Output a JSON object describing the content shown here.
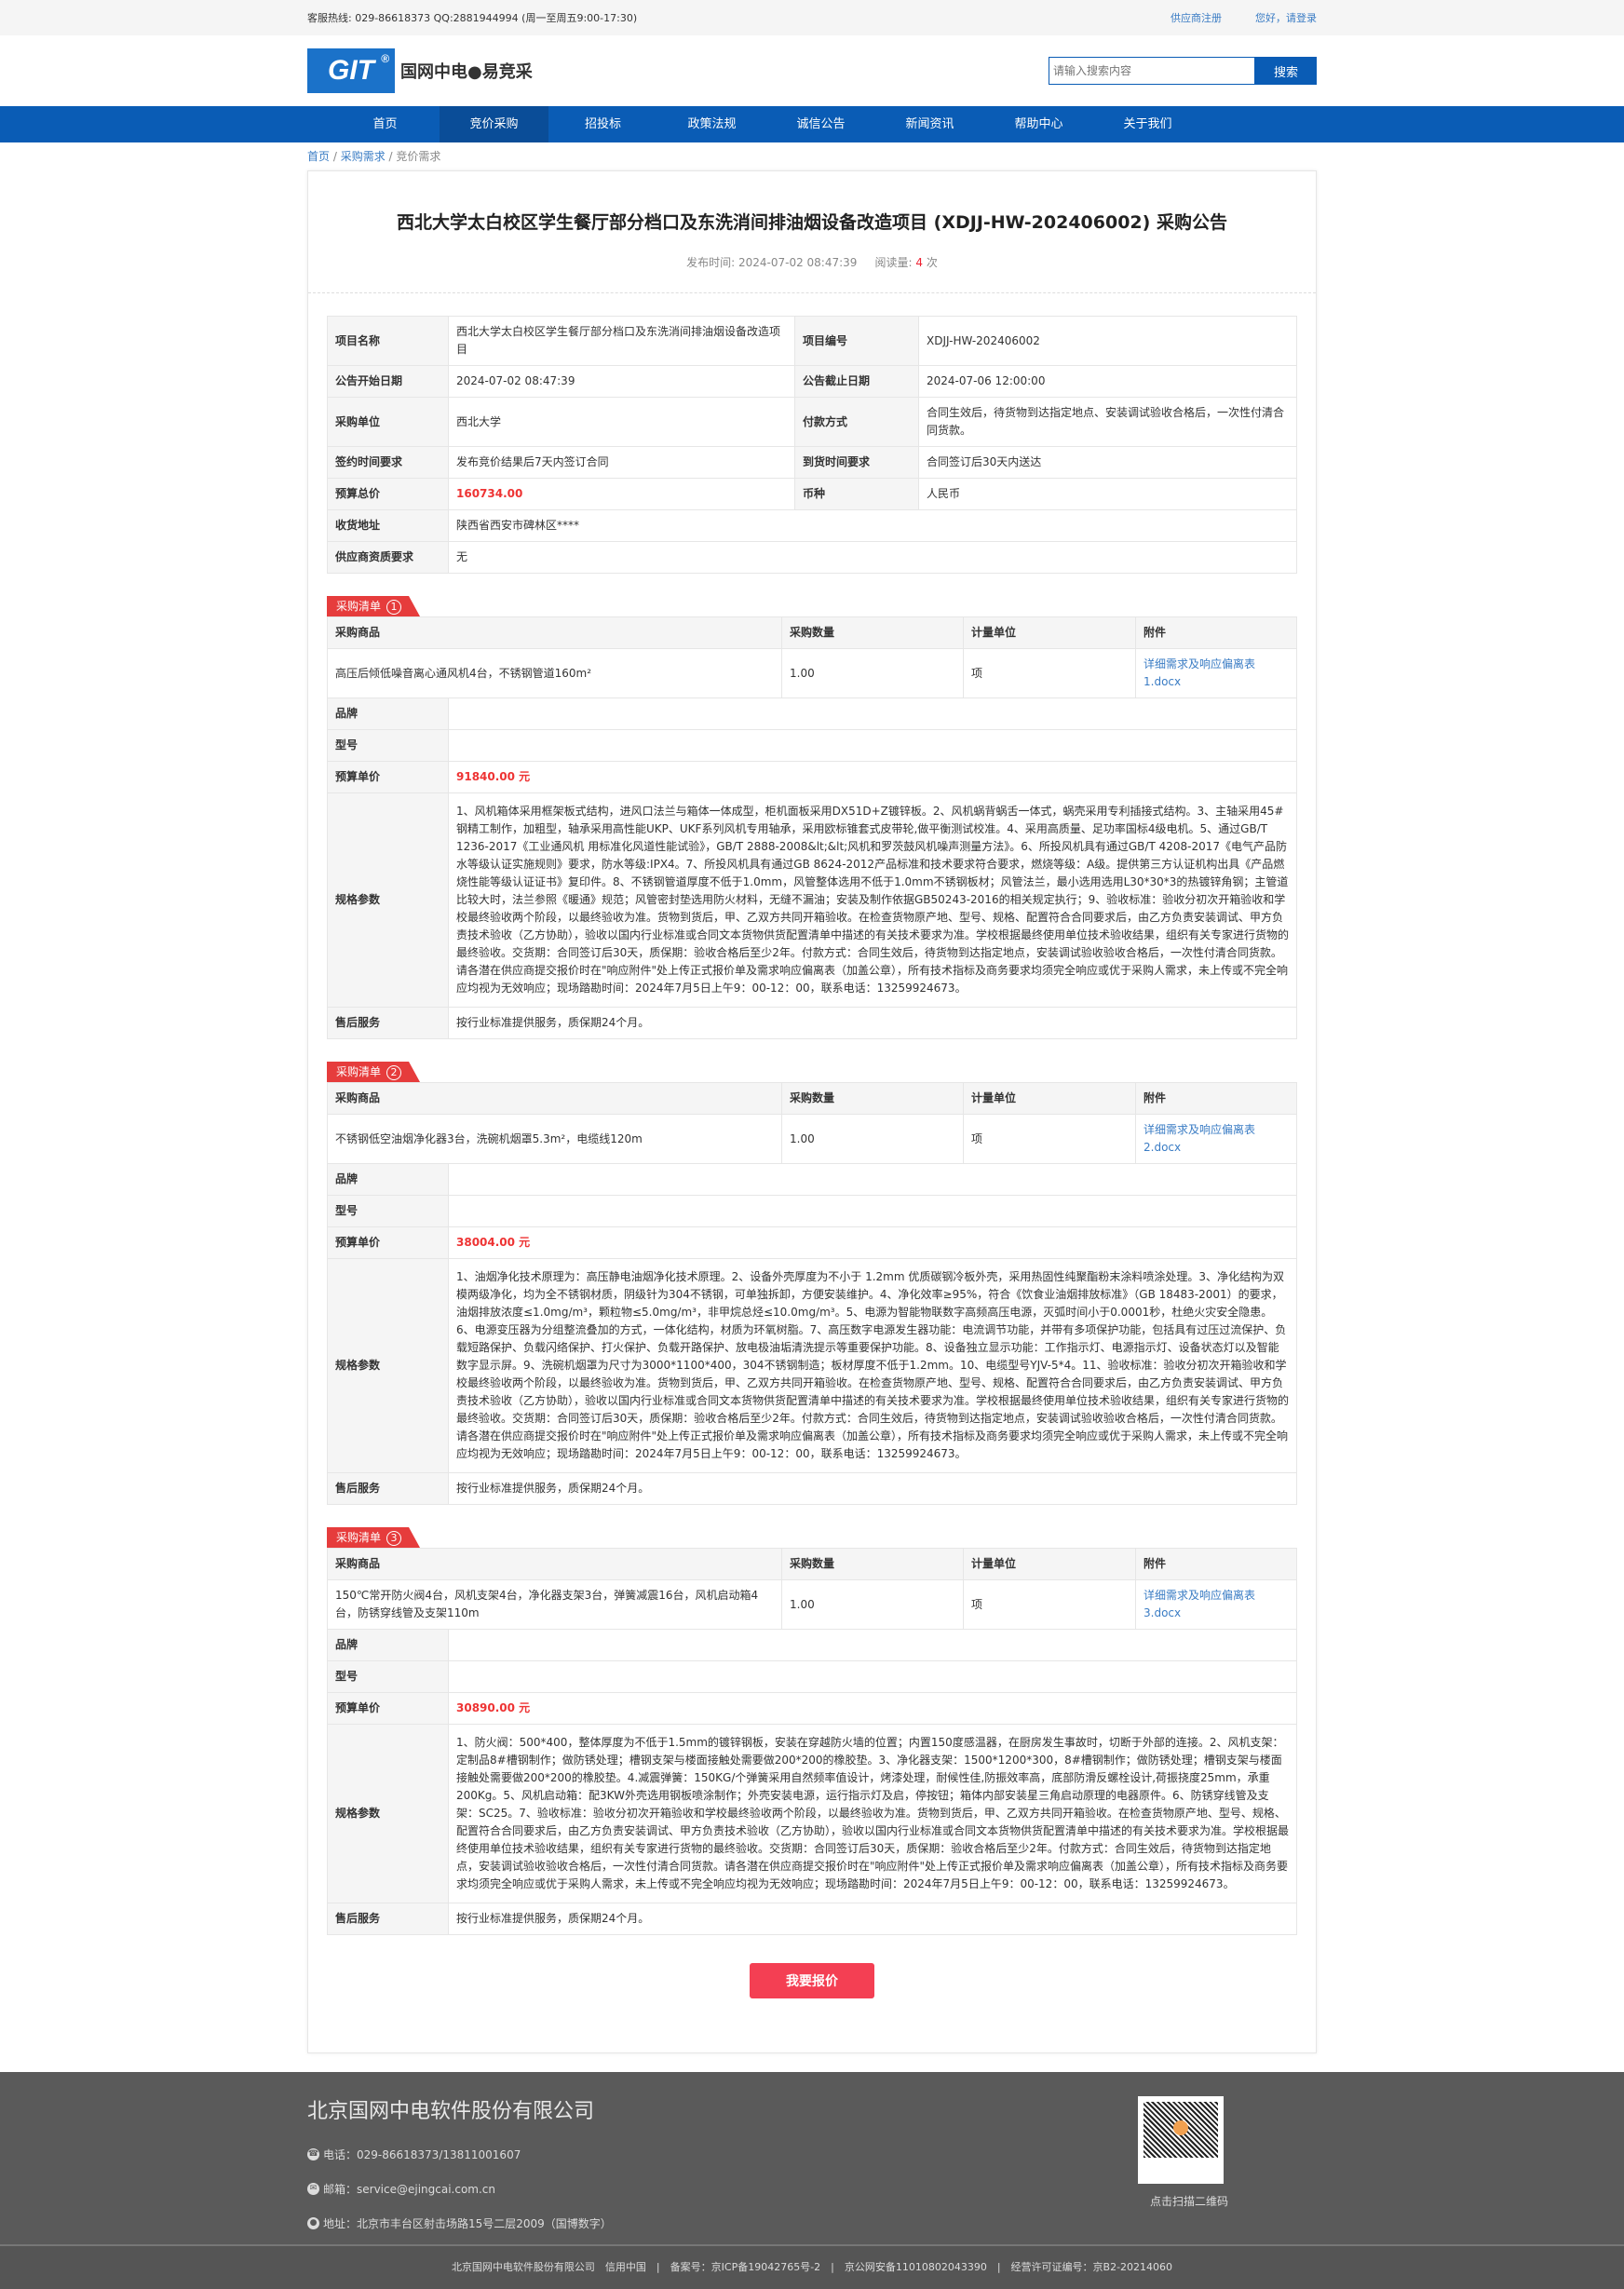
{
  "topbar": {
    "hotline": "客服热线: 029-86618373 QQ:2881944994 (周一至周五9:00-17:30)",
    "register": "供应商注册",
    "login": "您好，请登录"
  },
  "header": {
    "logo_mark": "GIT",
    "logo_text": "国网中电●易竞采",
    "search_placeholder": "请输入搜索内容",
    "search_button": "搜索"
  },
  "nav": [
    {
      "label": "首页"
    },
    {
      "label": "竞价采购",
      "active": true
    },
    {
      "label": "招投标"
    },
    {
      "label": "政策法规"
    },
    {
      "label": "诚信公告"
    },
    {
      "label": "新闻资讯"
    },
    {
      "label": "帮助中心"
    },
    {
      "label": "关于我们"
    }
  ],
  "breadcrumb": [
    "首页",
    "采购需求",
    "竞价需求"
  ],
  "notice": {
    "title": "西北大学太白校区学生餐厅部分档口及东洗消间排油烟设备改造项目 (XDJJ-HW-202406002) 采购公告",
    "publish_label": "发布时间:",
    "publish_time": "2024-07-02 08:47:39",
    "reads_label": "阅读量:",
    "reads": "4",
    "reads_unit": "次"
  },
  "info": {
    "project_name_label": "项目名称",
    "project_name": "西北大学太白校区学生餐厅部分档口及东洗消间排油烟设备改造项目",
    "project_no_label": "项目编号",
    "project_no": "XDJJ-HW-202406002",
    "start_label": "公告开始日期",
    "start": "2024-07-02 08:47:39",
    "end_label": "公告截止日期",
    "end": "2024-07-06 12:00:00",
    "buyer_label": "采购单位",
    "buyer": "西北大学",
    "payment_label": "付款方式",
    "payment": "合同生效后，待货物到达指定地点、安装调试验收合格后，一次性付清合同货款。",
    "sign_label": "签约时间要求",
    "sign": "发布竞价结果后7天内签订合同",
    "delivery_label": "到货时间要求",
    "delivery": "合同签订后30天内送达",
    "budget_label": "预算总价",
    "budget": "160734.00",
    "currency_label": "币种",
    "currency": "人民币",
    "address_label": "收货地址",
    "address": "陕西省西安市碑林区****",
    "qual_label": "供应商资质要求",
    "qual": "无"
  },
  "list_labels": {
    "tag": "采购清单",
    "goods": "采购商品",
    "qty": "采购数量",
    "unit": "计量单位",
    "attach": "附件",
    "brand": "品牌",
    "model": "型号",
    "price": "预算单价",
    "spec": "规格参数",
    "service": "售后服务"
  },
  "items": [
    {
      "no": "1",
      "goods": "高压后倾低噪音离心通风机4台，不锈钢管道160m²",
      "qty": "1.00",
      "unit": "项",
      "attach": "详细需求及响应偏离表1.docx",
      "brand": "",
      "model": "",
      "price": "91840.00 元",
      "spec": "1、风机箱体采用框架板式结构，进风口法兰与箱体一体成型，柜机面板采用DX51D+Z镀锌板。2、风机蜗背蜗舌一体式，蜗壳采用专利插接式结构。3、主轴采用45#钢精工制作，加粗型，轴承采用高性能UKP、UKF系列风机专用轴承，采用欧标锥套式皮带轮,做平衡测试校准。4、采用高质量、足功率国标4级电机。5、通过GB/T 1236-2017《工业通风机 用标准化风道性能试验》，GB/T 2888-2008&lt;&lt;风机和罗茨鼓风机噪声测量方法》。6、所投风机具有通过GB/T 4208-2017《电气产品防水等级认证实施规则》要求，防水等级:IPX4。7、所投风机具有通过GB 8624-2012产品标准和技术要求符合要求，燃烧等级：A级。提供第三方认证机构出具《产品燃烧性能等级认证证书》复印件。8、不锈钢管道厚度不低于1.0mm，风管整体选用不低于1.0mm不锈钢板材；风管法兰，最小选用选用L30*30*3的热镀锌角钢；主管道比较大时，法兰参照《暖通》规范；风管密封垫选用防火材料，无缝不漏油；安装及制作依据GB50243-2016的相关规定执行；9、验收标准：验收分初次开箱验收和学校最终验收两个阶段，以最终验收为准。货物到货后，甲、乙双方共同开箱验收。在检查货物原产地、型号、规格、配置符合合同要求后，由乙方负责安装调试、甲方负责技术验收（乙方协助），验收以国内行业标准或合同文本货物供货配置清单中描述的有关技术要求为准。学校根据最终使用单位技术验收结果，组织有关专家进行货物的最终验收。交货期：合同签订后30天，质保期：验收合格后至少2年。付款方式：合同生效后，待货物到达指定地点，安装调试验收验收合格后，一次性付清合同货款。请各潜在供应商提交报价时在\"响应附件\"处上传正式报价单及需求响应偏离表（加盖公章），所有技术指标及商务要求均须完全响应或优于采购人需求，未上传或不完全响应均视为无效响应；现场踏勘时间：2024年7月5日上午9：00-12：00，联系电话：13259924673。",
      "service": "按行业标准提供服务，质保期24个月。"
    },
    {
      "no": "2",
      "goods": "不锈钢低空油烟净化器3台，洗碗机烟罩5.3m²，电缆线120m",
      "qty": "1.00",
      "unit": "项",
      "attach": "详细需求及响应偏离表2.docx",
      "brand": "",
      "model": "",
      "price": "38004.00 元",
      "spec": "1、油烟净化技术原理为：高压静电油烟净化技术原理。2、设备外壳厚度为不小于 1.2mm 优质碳钢冷板外壳，采用热固性纯聚酯粉末涂料喷涂处理。3、净化结构为双模两级净化，均为全不锈钢材质，阴级针为304不锈钢，可单独拆卸，方便安装维护。4、净化效率≥95%，符合《饮食业油烟排放标准》（GB 18483-2001）的要求，油烟排放浓度≤1.0mg/m³，颗粒物≤5.0mg/m³，非甲烷总烃≤10.0mg/m³。5、电源为智能物联数字高频高压电源，灭弧时间小于0.0001秒，杜绝火灾安全隐患。6、电源变压器为分组整流叠加的方式，一体化结构，材质为环氧树脂。7、高压数字电源发生器功能：电流调节功能，并带有多项保护功能，包括具有过压过流保护、负载短路保护、负载闪络保护、打火保护、负载开路保护、放电极油垢清洗提示等重要保护功能。8、设备独立显示功能：工作指示灯、电源指示灯、设备状态灯以及智能数字显示屏。9、洗碗机烟罩为尺寸为3000*1100*400，304不锈钢制造；板材厚度不低于1.2mm。10、电缆型号YJV-5*4。11、验收标准：验收分初次开箱验收和学校最终验收两个阶段，以最终验收为准。货物到货后，甲、乙双方共同开箱验收。在检查货物原产地、型号、规格、配置符合合同要求后，由乙方负责安装调试、甲方负责技术验收（乙方协助），验收以国内行业标准或合同文本货物供货配置清单中描述的有关技术要求为准。学校根据最终使用单位技术验收结果，组织有关专家进行货物的最终验收。交货期：合同签订后30天，质保期：验收合格后至少2年。付款方式：合同生效后，待货物到达指定地点，安装调试验收验收合格后，一次性付清合同货款。请各潜在供应商提交报价时在\"响应附件\"处上传正式报价单及需求响应偏离表（加盖公章），所有技术指标及商务要求均须完全响应或优于采购人需求，未上传或不完全响应均视为无效响应；现场踏勘时间：2024年7月5日上午9：00-12：00，联系电话：13259924673。",
      "service": "按行业标准提供服务，质保期24个月。"
    },
    {
      "no": "3",
      "goods": "150℃常开防火阀4台，风机支架4台，净化器支架3台，弹簧减震16台，风机启动箱4台，防锈穿线管及支架110m",
      "qty": "1.00",
      "unit": "项",
      "attach": "详细需求及响应偏离表3.docx",
      "brand": "",
      "model": "",
      "price": "30890.00 元",
      "spec": "1、防火阀：500*400，整体厚度为不低于1.5mm的镀锌钢板，安装在穿越防火墙的位置；内置150度感温器，在厨房发生事故时，切断于外部的连接。2、风机支架：定制品8#槽钢制作；做防锈处理；槽钢支架与楼面接触处需要做200*200的橡胶垫。3、净化器支架：1500*1200*300，8#槽钢制作；做防锈处理；槽钢支架与楼面接触处需要做200*200的橡胶垫。4.减震弹簧：150KG/个弹簧采用自然频率值设计，烤漆处理，耐候性佳,防振效率高，底部防滑反螺栓设计,荷振挠度25mm，承重200Kg。5、风机启动箱：配3KW外壳选用钢板喷涂制作；外壳安装电源，运行指示灯及启，停按钮；箱体内部安装星三角启动原理的电器原件。6、防锈穿线管及支架：SC25。7、验收标准：验收分初次开箱验收和学校最终验收两个阶段，以最终验收为准。货物到货后，甲、乙双方共同开箱验收。在检查货物原产地、型号、规格、配置符合合同要求后，由乙方负责安装调试、甲方负责技术验收（乙方协助），验收以国内行业标准或合同文本货物供货配置清单中描述的有关技术要求为准。学校根据最终使用单位技术验收结果，组织有关专家进行货物的最终验收。交货期：合同签订后30天，质保期：验收合格后至少2年。付款方式：合同生效后，待货物到达指定地点，安装调试验收验收合格后，一次性付清合同货款。请各潜在供应商提交报价时在\"响应附件\"处上传正式报价单及需求响应偏离表（加盖公章），所有技术指标及商务要求均须完全响应或优于采购人需求，未上传或不完全响应均视为无效响应；现场踏勘时间：2024年7月5日上午9：00-12：00，联系电话：13259924673。",
      "service": "按行业标准提供服务，质保期24个月。"
    }
  ],
  "quote_button": "我要报价",
  "footer": {
    "company": "北京国网中电软件股份有限公司",
    "phone": "电话：029-86618373/13811001607",
    "email": "邮箱：service@ejingcai.com.cn",
    "address": "地址：北京市丰台区射击场路15号二层2009（国博数字）",
    "qr_caption": "点击扫描二维码",
    "bottom": "北京国网中电软件股份有限公司　信用中国　|　备案号：京ICP备19042765号-2　|　京公网安备11010802043390　|　经营许可证编号：京B2-20214060"
  },
  "colors": {
    "brand_blue": "#0a5cb5",
    "accent_red": "#e63c3c",
    "button_red": "#f43f53",
    "footer_bg": "#5a5a5a"
  }
}
